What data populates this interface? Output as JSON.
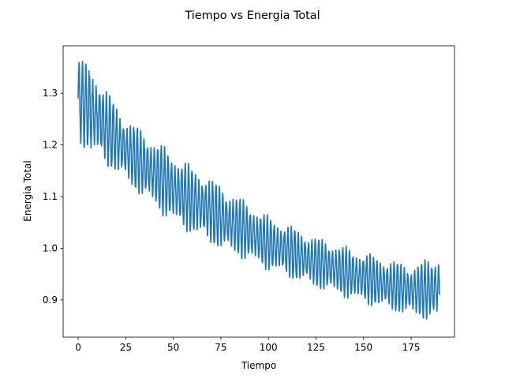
{
  "chart_data": {
    "type": "line",
    "title": "Tiempo vs Energia Total",
    "xlabel": "Tiempo",
    "ylabel": "Energia Total",
    "xlim": [
      -7.9,
      197.8
    ],
    "ylim": [
      0.828,
      1.392
    ],
    "xticks": [
      0,
      25,
      50,
      75,
      100,
      125,
      150,
      175
    ],
    "yticks": [
      0.9,
      1.0,
      1.1,
      1.2,
      1.3
    ],
    "xtick_labels": [
      "0",
      "25",
      "50",
      "75",
      "100",
      "125",
      "150",
      "175"
    ],
    "ytick_labels": [
      "0.9",
      "1.0",
      "1.1",
      "1.2",
      "1.3"
    ],
    "grid": false,
    "legend": "none",
    "line_color": "#1f77b4",
    "series": [
      {
        "x_range": [
          0,
          189.9
        ],
        "oscillation_period": 1.8,
        "upper_envelope": [
          [
            0,
            1.37
          ],
          [
            10,
            1.33
          ],
          [
            25,
            1.25
          ],
          [
            50,
            1.18
          ],
          [
            75,
            1.12
          ],
          [
            100,
            1.06
          ],
          [
            125,
            1.02
          ],
          [
            150,
            0.99
          ],
          [
            175,
            0.965
          ],
          [
            189.9,
            0.985
          ]
        ],
        "lower_envelope": [
          [
            0,
            1.21
          ],
          [
            10,
            1.18
          ],
          [
            25,
            1.13
          ],
          [
            50,
            1.05
          ],
          [
            75,
            1.0
          ],
          [
            100,
            0.96
          ],
          [
            125,
            0.925
          ],
          [
            150,
            0.895
          ],
          [
            175,
            0.87
          ],
          [
            189.9,
            0.86
          ]
        ],
        "end_value": 0.91
      }
    ]
  }
}
